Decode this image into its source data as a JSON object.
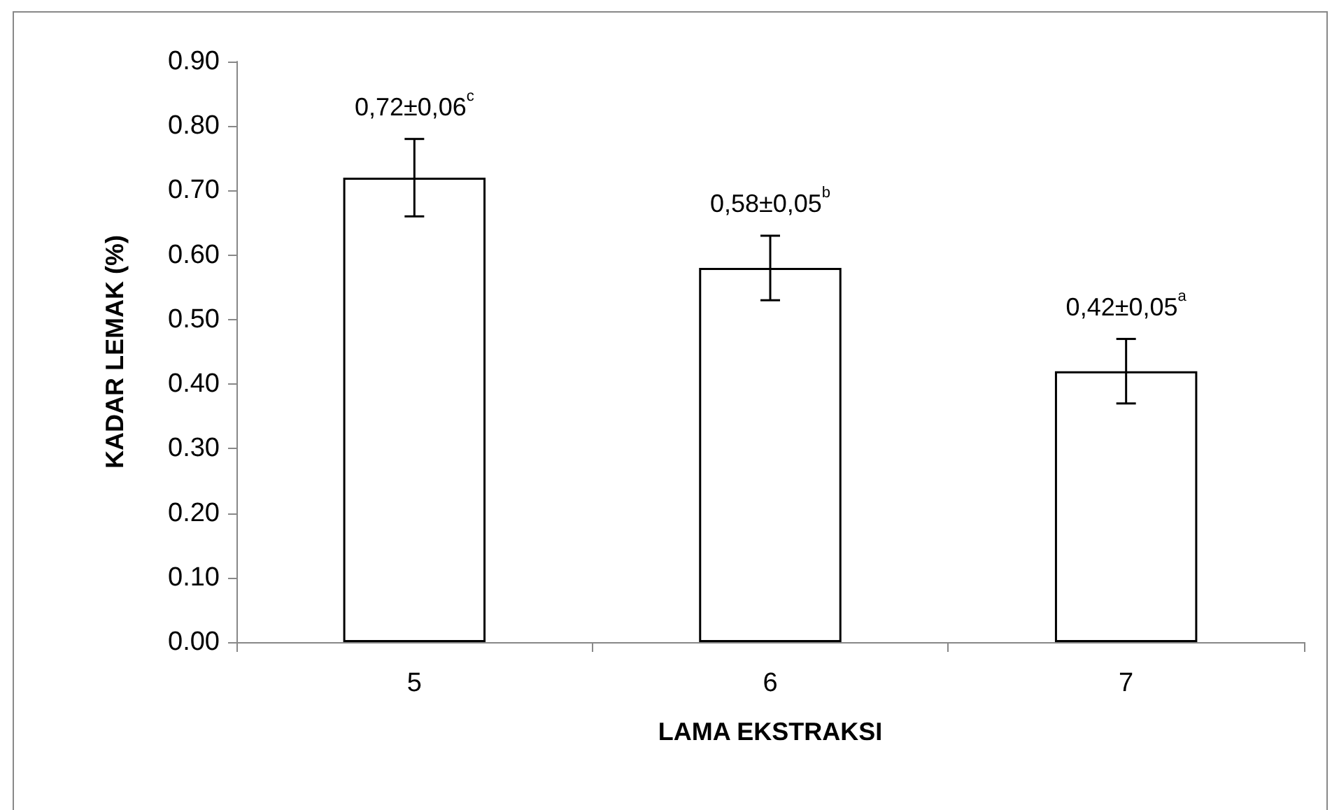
{
  "chart_data": {
    "type": "bar",
    "xlabel": "LAMA EKSTRAKSI",
    "ylabel": "KADAR LEMAK (%)",
    "categories": [
      "5",
      "6",
      "7"
    ],
    "values": [
      0.72,
      0.58,
      0.42
    ],
    "errors": [
      0.06,
      0.05,
      0.05
    ],
    "value_labels": [
      "0,72±0,06$^{c}$",
      "0,58±0,05$^{b}$",
      "0,42±0,05$^{a}$"
    ],
    "color": "#ffffff",
    "ylim": [
      0,
      0.9
    ],
    "yticks": [
      {
        "value": 0,
        "label": "0.00"
      },
      {
        "value": 0.1,
        "label": "0.10"
      },
      {
        "value": 0.2,
        "label": "0.20"
      },
      {
        "value": 0.3,
        "label": "0.30"
      },
      {
        "value": 0.4,
        "label": "0.40"
      },
      {
        "value": 0.5,
        "label": "0.50"
      },
      {
        "value": 0.6,
        "label": "0.60"
      },
      {
        "value": 0.7,
        "label": "0.70"
      },
      {
        "value": 0.8,
        "label": "0.80"
      },
      {
        "value": 0.9,
        "label": "0.90"
      }
    ],
    "grid": false
  }
}
